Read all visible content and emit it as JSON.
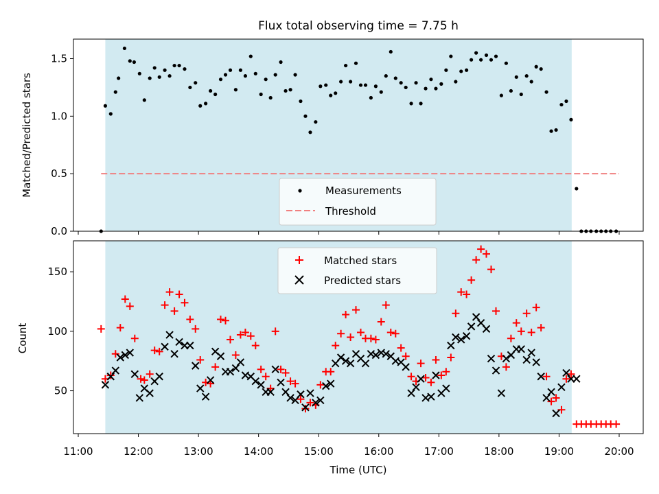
{
  "chart_data": [
    {
      "type": "scatter",
      "title": "Flux total observing time = 7.75 h",
      "xlabel": "",
      "ylabel": "Matched/Predicted stars",
      "xlim": [
        10.92,
        20.4
      ],
      "ylim": [
        0,
        1.67
      ],
      "yticks": [
        0.0,
        0.5,
        1.0,
        1.5
      ],
      "ytick_labels": [
        "0.0",
        "0.5",
        "1.0",
        "1.5"
      ],
      "shaded_x_range": [
        11.45,
        19.21
      ],
      "shade_color": "#add8e6",
      "threshold": {
        "name": "Threshold",
        "value": 0.5,
        "x_range": [
          11.38,
          20.0
        ],
        "color": "#f08080"
      },
      "legend": {
        "location": "lower center",
        "entries": [
          "Measurements",
          "Threshold"
        ]
      },
      "series": [
        {
          "name": "Measurements",
          "marker": "dot",
          "color": "#000000",
          "x": [
            11.38,
            11.45,
            11.54,
            11.62,
            11.67,
            11.77,
            11.86,
            11.93,
            12.02,
            12.1,
            12.19,
            12.27,
            12.35,
            12.44,
            12.52,
            12.6,
            12.68,
            12.77,
            12.86,
            12.95,
            13.03,
            13.12,
            13.2,
            13.28,
            13.37,
            13.45,
            13.53,
            13.62,
            13.7,
            13.78,
            13.87,
            13.95,
            14.04,
            14.12,
            14.2,
            14.28,
            14.37,
            14.45,
            14.53,
            14.61,
            14.7,
            14.78,
            14.86,
            14.95,
            15.03,
            15.12,
            15.2,
            15.28,
            15.37,
            15.45,
            15.53,
            15.62,
            15.7,
            15.78,
            15.87,
            15.95,
            16.04,
            16.12,
            16.2,
            16.28,
            16.37,
            16.45,
            16.54,
            16.62,
            16.7,
            16.78,
            16.87,
            16.95,
            17.04,
            17.12,
            17.2,
            17.28,
            17.37,
            17.46,
            17.54,
            17.62,
            17.7,
            17.79,
            17.87,
            17.95,
            18.04,
            18.12,
            18.2,
            18.29,
            18.37,
            18.46,
            18.54,
            18.62,
            18.7,
            18.79,
            18.87,
            18.95,
            19.04,
            19.12,
            19.2,
            19.29,
            19.37,
            19.45,
            19.53,
            19.62,
            19.7,
            19.78,
            19.86,
            19.95
          ],
          "values": [
            0.0,
            1.09,
            1.02,
            1.21,
            1.33,
            1.59,
            1.48,
            1.47,
            1.37,
            1.14,
            1.33,
            1.42,
            1.34,
            1.4,
            1.35,
            1.44,
            1.44,
            1.41,
            1.25,
            1.29,
            1.09,
            1.11,
            1.22,
            1.19,
            1.32,
            1.36,
            1.4,
            1.23,
            1.4,
            1.35,
            1.52,
            1.37,
            1.19,
            1.32,
            1.16,
            1.36,
            1.47,
            1.22,
            1.23,
            1.36,
            1.13,
            1.0,
            0.86,
            0.95,
            1.26,
            1.27,
            1.18,
            1.2,
            1.3,
            1.44,
            1.3,
            1.46,
            1.27,
            1.27,
            1.16,
            1.26,
            1.21,
            1.35,
            1.56,
            1.33,
            1.29,
            1.25,
            1.11,
            1.29,
            1.11,
            1.24,
            1.32,
            1.24,
            1.28,
            1.4,
            1.52,
            1.3,
            1.39,
            1.4,
            1.49,
            1.55,
            1.49,
            1.53,
            1.49,
            1.52,
            1.18,
            1.46,
            1.22,
            1.34,
            1.19,
            1.35,
            1.3,
            1.43,
            1.41,
            1.21,
            0.87,
            0.88,
            1.1,
            1.13,
            0.97,
            0.37,
            0.0,
            0.0,
            0.0,
            0.0,
            0.0,
            0.0,
            0.0,
            0.0
          ]
        }
      ]
    },
    {
      "type": "scatter",
      "title": "",
      "xlabel": "Time (UTC)",
      "ylabel": "Count",
      "xlim": [
        10.92,
        20.4
      ],
      "ylim": [
        14,
        176
      ],
      "yticks": [
        50,
        100,
        150
      ],
      "ytick_labels": [
        "50",
        "100",
        "150"
      ],
      "xticks": [
        11,
        12,
        13,
        14,
        15,
        16,
        17,
        18,
        19,
        20
      ],
      "xtick_labels": [
        "11:00",
        "12:00",
        "13:00",
        "14:00",
        "15:00",
        "16:00",
        "17:00",
        "18:00",
        "19:00",
        "20:00"
      ],
      "shaded_x_range": [
        11.45,
        19.21
      ],
      "shade_color": "#add8e6",
      "legend": {
        "location": "upper center",
        "entries": [
          "Matched stars",
          "Predicted stars"
        ]
      },
      "series": [
        {
          "name": "Matched stars",
          "marker": "plus",
          "color": "#ff0000",
          "x": [
            11.38,
            11.45,
            11.54,
            11.62,
            11.7,
            11.78,
            11.86,
            11.94,
            12.04,
            12.1,
            12.19,
            12.27,
            12.35,
            12.44,
            12.52,
            12.6,
            12.68,
            12.77,
            12.86,
            12.95,
            13.03,
            13.12,
            13.2,
            13.28,
            13.37,
            13.45,
            13.53,
            13.62,
            13.7,
            13.78,
            13.87,
            13.95,
            14.04,
            14.12,
            14.2,
            14.28,
            14.37,
            14.45,
            14.53,
            14.61,
            14.7,
            14.78,
            14.86,
            14.95,
            15.03,
            15.12,
            15.2,
            15.28,
            15.37,
            15.45,
            15.53,
            15.62,
            15.7,
            15.78,
            15.87,
            15.95,
            16.04,
            16.12,
            16.2,
            16.28,
            16.37,
            16.45,
            16.54,
            16.62,
            16.7,
            16.78,
            16.87,
            16.95,
            17.04,
            17.12,
            17.2,
            17.28,
            17.37,
            17.46,
            17.54,
            17.62,
            17.7,
            17.79,
            17.87,
            17.95,
            18.04,
            18.12,
            18.2,
            18.29,
            18.37,
            18.46,
            18.54,
            18.62,
            18.7,
            18.79,
            18.87,
            18.95,
            19.04,
            19.12,
            19.2,
            19.29,
            19.37,
            19.45,
            19.53,
            19.62,
            19.7,
            19.78,
            19.86,
            19.95
          ],
          "values": [
            102,
            60,
            63,
            81,
            103,
            127,
            121,
            94,
            60,
            59,
            64,
            84,
            83,
            122,
            133,
            117,
            131,
            124,
            110,
            102,
            76,
            57,
            56,
            70,
            110,
            109,
            93,
            80,
            97,
            99,
            96,
            88,
            68,
            62,
            52,
            100,
            68,
            65,
            58,
            56,
            43,
            35,
            40,
            38,
            55,
            66,
            66,
            88,
            98,
            114,
            95,
            118,
            99,
            94,
            94,
            93,
            108,
            122,
            99,
            98,
            86,
            79,
            62,
            58,
            73,
            61,
            57,
            76,
            63,
            66,
            78,
            115,
            133,
            131,
            143,
            160,
            169,
            165,
            152,
            117,
            79,
            70,
            94,
            107,
            100,
            115,
            99,
            120,
            103,
            62,
            41,
            44,
            34,
            60,
            64,
            22,
            22,
            22,
            22,
            22,
            22,
            22,
            22,
            22
          ]
        },
        {
          "name": "Predicted stars",
          "marker": "x",
          "color": "#000000",
          "x": [
            11.45,
            11.54,
            11.62,
            11.7,
            11.78,
            11.86,
            11.94,
            12.02,
            12.1,
            12.19,
            12.27,
            12.35,
            12.44,
            12.52,
            12.6,
            12.68,
            12.77,
            12.86,
            12.95,
            13.03,
            13.12,
            13.2,
            13.28,
            13.37,
            13.45,
            13.53,
            13.62,
            13.7,
            13.78,
            13.87,
            13.95,
            14.04,
            14.12,
            14.2,
            14.28,
            14.37,
            14.45,
            14.53,
            14.61,
            14.7,
            14.78,
            14.86,
            14.95,
            15.03,
            15.12,
            15.2,
            15.28,
            15.37,
            15.45,
            15.53,
            15.62,
            15.7,
            15.78,
            15.87,
            15.95,
            16.04,
            16.12,
            16.2,
            16.28,
            16.37,
            16.45,
            16.54,
            16.62,
            16.7,
            16.78,
            16.87,
            16.95,
            17.04,
            17.12,
            17.2,
            17.28,
            17.37,
            17.46,
            17.54,
            17.62,
            17.7,
            17.79,
            17.87,
            17.95,
            18.04,
            18.12,
            18.2,
            18.29,
            18.37,
            18.46,
            18.54,
            18.62,
            18.7,
            18.79,
            18.87,
            18.95,
            19.04,
            19.12,
            19.2,
            19.29
          ],
          "values": [
            55,
            62,
            67,
            78,
            80,
            82,
            64,
            44,
            52,
            48,
            58,
            62,
            87,
            97,
            81,
            91,
            88,
            88,
            71,
            52,
            45,
            59,
            83,
            79,
            66,
            66,
            69,
            74,
            63,
            62,
            58,
            55,
            49,
            49,
            68,
            57,
            49,
            44,
            42,
            47,
            36,
            48,
            40,
            42,
            54,
            56,
            73,
            78,
            75,
            73,
            81,
            77,
            73,
            81,
            80,
            82,
            81,
            79,
            75,
            74,
            70,
            48,
            53,
            60,
            44,
            45,
            63,
            48,
            52,
            88,
            95,
            93,
            96,
            104,
            112,
            107,
            102,
            77,
            67,
            48,
            77,
            80,
            85,
            85,
            76,
            82,
            74,
            62,
            44,
            49,
            31,
            53,
            65,
            60,
            60
          ]
        }
      ]
    }
  ]
}
